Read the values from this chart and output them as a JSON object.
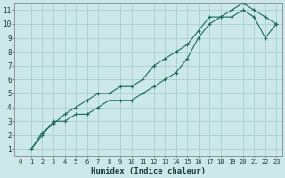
{
  "xlabel": "Humidex (Indice chaleur)",
  "bg_color": "#cce8e8",
  "grid_color": "#aacece",
  "line_color": "#1a6b5a",
  "xlim": [
    -0.5,
    23.5
  ],
  "ylim": [
    0.5,
    11.5
  ],
  "xticks": [
    0,
    1,
    2,
    3,
    4,
    5,
    6,
    7,
    8,
    9,
    10,
    11,
    12,
    13,
    14,
    15,
    16,
    17,
    18,
    19,
    20,
    21,
    22,
    23
  ],
  "yticks": [
    1,
    2,
    3,
    4,
    5,
    6,
    7,
    8,
    9,
    10,
    11
  ],
  "line1_x": [
    1,
    2,
    3,
    4,
    5,
    6,
    7,
    8,
    9,
    10,
    11,
    12,
    13,
    14,
    15,
    16,
    17,
    18,
    19,
    20,
    21,
    22,
    23
  ],
  "line1_y": [
    1,
    2,
    3,
    3,
    3.5,
    3.5,
    4,
    4.5,
    4.5,
    4.5,
    5,
    5.5,
    6,
    6.5,
    7.5,
    9,
    10,
    10.5,
    10.5,
    11,
    10.5,
    9,
    10
  ],
  "line2_x": [
    1,
    2,
    3,
    4,
    5,
    6,
    7,
    8,
    9,
    10,
    11,
    12,
    13,
    14,
    15,
    16,
    17,
    18,
    19,
    20,
    21,
    22,
    23
  ],
  "line2_y": [
    1,
    2.2,
    2.8,
    3.5,
    4,
    4.5,
    5,
    5,
    5.5,
    5.5,
    6,
    7,
    7.5,
    8,
    8.5,
    9.5,
    10.5,
    10.5,
    11,
    11.5,
    11,
    10.5,
    10
  ]
}
